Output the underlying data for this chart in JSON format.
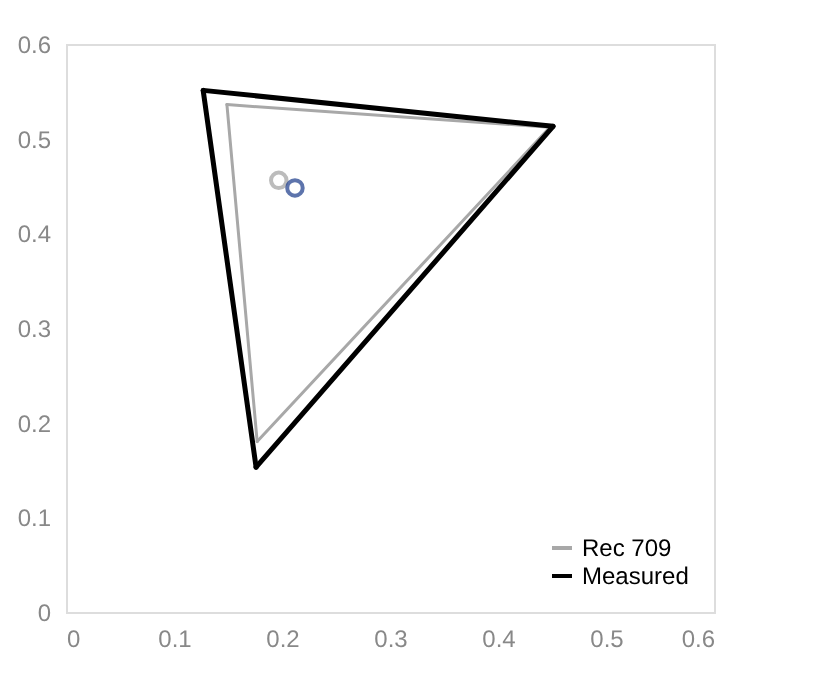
{
  "chart_data": {
    "type": "line",
    "xlim": [
      0,
      0.6
    ],
    "ylim": [
      0,
      0.6
    ],
    "xticks": [
      0,
      0.1,
      0.2,
      0.3,
      0.4,
      0.5,
      0.6
    ],
    "yticks": [
      0,
      0.1,
      0.2,
      0.3,
      0.4,
      0.5,
      0.6
    ],
    "grid": false,
    "legend": "bottom right",
    "marker": "none",
    "line_style": "solid",
    "series": [
      {
        "name": "Rec 709",
        "color": "#a8a8a8",
        "x": [
          0.149,
          0.448
        ],
        "values": [
          0.536,
          0.512
        ]
      },
      {
        "color": "#a8a8a8",
        "x": [
          0.177,
          0.448
        ],
        "values": [
          0.18,
          0.512
        ]
      },
      {
        "color": "#a8a8a8",
        "x": [
          0.149,
          0.177
        ],
        "values": [
          0.536,
          0.18
        ]
      },
      {
        "name": "Measured",
        "color": "#000000",
        "x": [
          0.127,
          0.451
        ],
        "values": [
          0.551,
          0.513
        ]
      },
      {
        "color": "#000000",
        "x": [
          0.176,
          0.451
        ],
        "values": [
          0.153,
          0.513
        ]
      },
      {
        "color": "#000000",
        "x": [
          0.127,
          0.176
        ],
        "values": [
          0.551,
          0.153
        ]
      },
      {
        "type": "scatter",
        "marker": "circle",
        "colors": [
          "#a0a0a0",
          "#1a3a8a"
        ],
        "x": [
          0.197,
          0.212
        ],
        "values": [
          0.456,
          0.448
        ]
      }
    ]
  }
}
